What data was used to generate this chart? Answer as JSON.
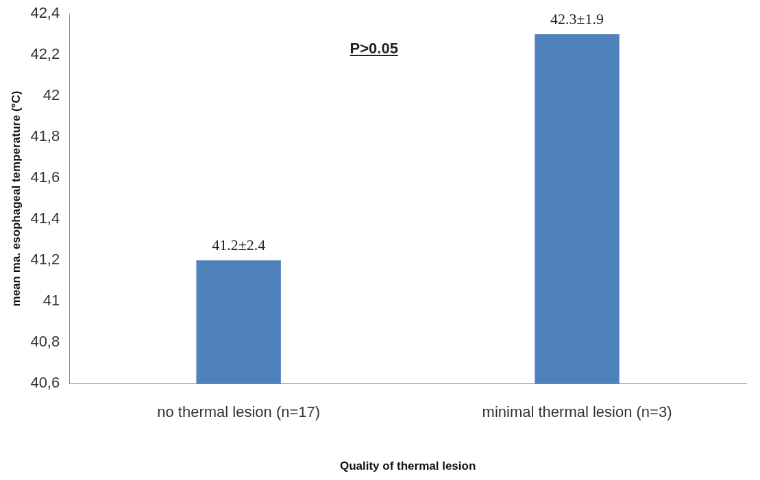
{
  "chart_data": {
    "type": "bar",
    "xlabel": "Quality of thermal lesion",
    "ylabel": "mean ma. esophageal temperature (°C)",
    "categories": [
      "no thermal lesion (n=17)",
      "minimal thermal lesion (n=3)"
    ],
    "series": [
      {
        "color": "#4f81bd",
        "values": [
          41.2,
          42.3
        ],
        "value_labels": [
          "41.2±2.4",
          "42.3±1.9"
        ]
      }
    ],
    "ylim": [
      40.6,
      42.4
    ],
    "yticks": [
      {
        "value": 40.6,
        "label": "40,6"
      },
      {
        "value": 40.8,
        "label": "40,8"
      },
      41,
      {
        "value": 41.2,
        "label": "41,2"
      },
      {
        "value": 41.4,
        "label": "41,4"
      },
      {
        "value": 41.6,
        "label": "41,6"
      },
      {
        "value": 41.8,
        "label": "41,8"
      },
      42,
      {
        "value": 42.2,
        "label": "42,2"
      },
      {
        "value": 42.4,
        "label": "42,4"
      }
    ],
    "annotations": [
      "P>0.05"
    ],
    "grid": false,
    "legend": false
  }
}
